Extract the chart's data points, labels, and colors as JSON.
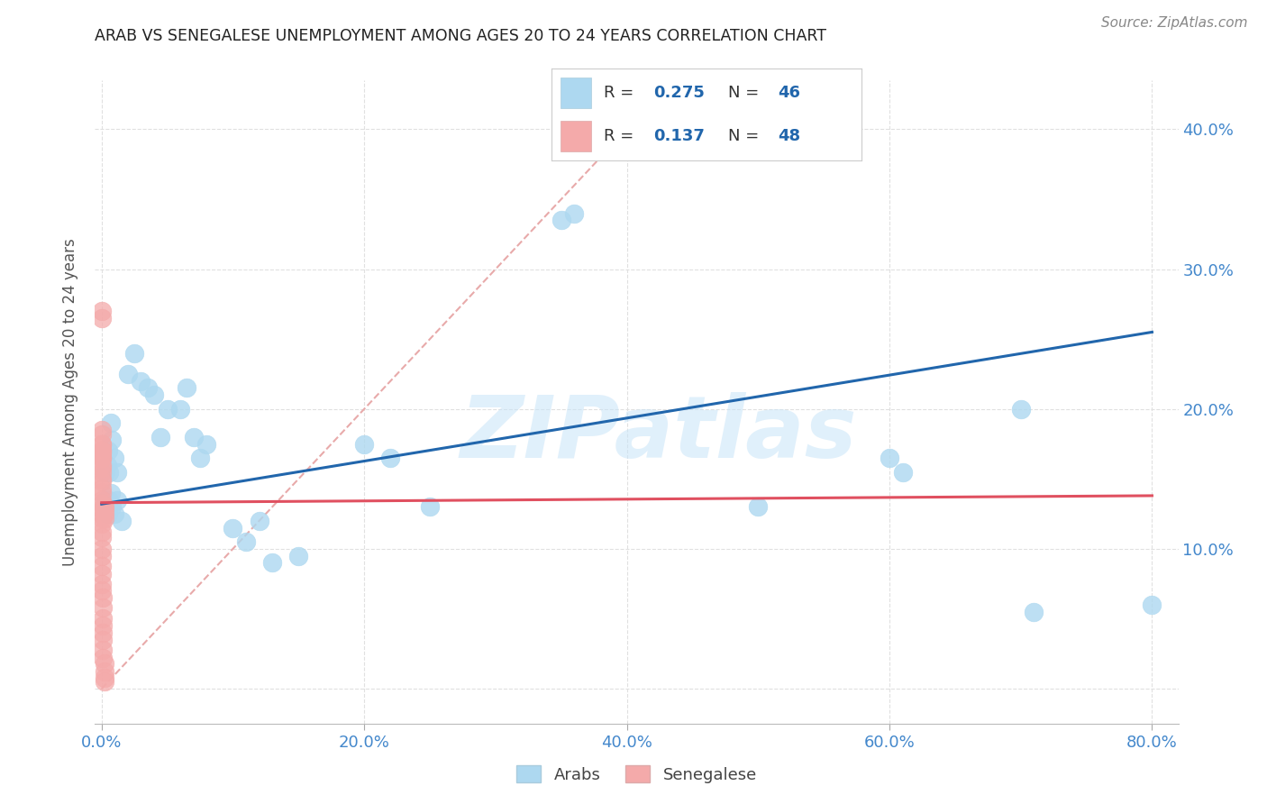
{
  "title": "ARAB VS SENEGALESE UNEMPLOYMENT AMONG AGES 20 TO 24 YEARS CORRELATION CHART",
  "source": "Source: ZipAtlas.com",
  "ylabel": "Unemployment Among Ages 20 to 24 years",
  "xlim": [
    -0.005,
    0.82
  ],
  "ylim": [
    -0.025,
    0.435
  ],
  "x_ticks": [
    0.0,
    0.2,
    0.4,
    0.6,
    0.8
  ],
  "x_tick_labels": [
    "0.0%",
    "20.0%",
    "40.0%",
    "60.0%",
    "80.0%"
  ],
  "y_ticks": [
    0.0,
    0.1,
    0.2,
    0.3,
    0.4
  ],
  "y_tick_labels": [
    "",
    "10.0%",
    "20.0%",
    "30.0%",
    "40.0%"
  ],
  "arab_color": "#ADD8F0",
  "senegalese_color": "#F4AAAA",
  "arab_line_color": "#2166AC",
  "senegalese_line_color": "#E05060",
  "ref_line_color": "#E8AAAA",
  "legend_arab_R": "0.275",
  "legend_arab_N": "46",
  "legend_senegalese_R": "0.137",
  "legend_senegalese_N": "48",
  "watermark": "ZIPatlas",
  "arab_x": [
    0.003,
    0.004,
    0.005,
    0.005,
    0.006,
    0.007,
    0.008,
    0.01,
    0.012,
    0.015,
    0.003,
    0.004,
    0.005,
    0.006,
    0.007,
    0.008,
    0.01,
    0.012,
    0.02,
    0.025,
    0.03,
    0.035,
    0.04,
    0.045,
    0.05,
    0.06,
    0.065,
    0.07,
    0.075,
    0.08,
    0.1,
    0.11,
    0.12,
    0.13,
    0.15,
    0.2,
    0.22,
    0.25,
    0.35,
    0.36,
    0.5,
    0.6,
    0.61,
    0.7,
    0.71,
    0.8
  ],
  "arab_y": [
    0.135,
    0.13,
    0.13,
    0.125,
    0.135,
    0.14,
    0.13,
    0.125,
    0.135,
    0.12,
    0.155,
    0.16,
    0.17,
    0.155,
    0.19,
    0.178,
    0.165,
    0.155,
    0.225,
    0.24,
    0.22,
    0.215,
    0.21,
    0.18,
    0.2,
    0.2,
    0.215,
    0.18,
    0.165,
    0.175,
    0.115,
    0.105,
    0.12,
    0.09,
    0.095,
    0.175,
    0.165,
    0.13,
    0.335,
    0.34,
    0.13,
    0.165,
    0.155,
    0.2,
    0.055,
    0.06
  ],
  "senegalese_x": [
    0.0,
    0.0,
    0.0,
    0.0,
    0.0,
    0.0,
    0.0,
    0.0,
    0.0,
    0.0,
    0.0,
    0.0,
    0.0,
    0.0,
    0.0,
    0.0,
    0.0,
    0.0,
    0.0,
    0.0,
    0.0,
    0.0,
    0.0,
    0.0,
    0.0,
    0.0,
    0.0,
    0.0,
    0.0,
    0.0,
    0.0,
    0.0,
    0.001,
    0.001,
    0.001,
    0.001,
    0.001,
    0.001,
    0.001,
    0.001,
    0.002,
    0.002,
    0.002,
    0.002,
    0.002,
    0.002,
    0.002,
    0.002
  ],
  "senegalese_y": [
    0.27,
    0.265,
    0.185,
    0.182,
    0.175,
    0.17,
    0.168,
    0.165,
    0.158,
    0.155,
    0.15,
    0.148,
    0.143,
    0.14,
    0.135,
    0.132,
    0.128,
    0.125,
    0.122,
    0.118,
    0.112,
    0.108,
    0.1,
    0.095,
    0.088,
    0.082,
    0.075,
    0.07,
    0.175,
    0.17,
    0.165,
    0.16,
    0.065,
    0.058,
    0.05,
    0.045,
    0.04,
    0.035,
    0.028,
    0.022,
    0.018,
    0.012,
    0.008,
    0.005,
    0.13,
    0.128,
    0.125,
    0.122
  ],
  "arab_line_x0": 0.0,
  "arab_line_y0": 0.132,
  "arab_line_x1": 0.8,
  "arab_line_y1": 0.255,
  "sen_line_x0": 0.0,
  "sen_line_y0": 0.133,
  "sen_line_x1": 0.8,
  "sen_line_y1": 0.138,
  "background_color": "#FFFFFF",
  "grid_color": "#E0E0E0",
  "tick_color": "#4488CC",
  "title_color": "#222222",
  "source_color": "#888888",
  "ylabel_color": "#555555"
}
